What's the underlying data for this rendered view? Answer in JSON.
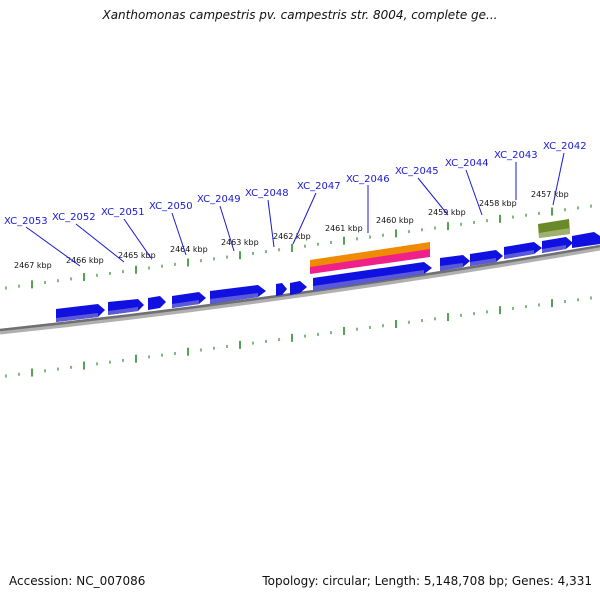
{
  "title": "Xanthomonas campestris pv. campestris str. 8004, complete ge...",
  "footer": {
    "accession": "Accession: NC_007086",
    "summary": "Topology: circular; Length: 5,148,708 bp; Genes: 4,331"
  },
  "colors": {
    "backbone": "#808080",
    "gene": "#1010e0",
    "gene_shadow": "#5a5ad8",
    "tick": "#2a8a2a",
    "orange_feature": "#f08a00",
    "pink_feature": "#f0208a",
    "olive_feature": "#6a8a2a",
    "label": "#1a1ad6"
  },
  "scale_labels": [
    "2467 kbp",
    "2466 kbp",
    "2465 kbp",
    "2464 kbp",
    "2463 kbp",
    "2462 kbp",
    "2461 kbp",
    "2460 kbp",
    "2459 kbp",
    "2458 kbp",
    "2457 kbp"
  ],
  "gene_labels": [
    "XC_2053",
    "XC_2052",
    "XC_2051",
    "XC_2050",
    "XC_2049",
    "XC_2048",
    "XC_2047",
    "XC_2046",
    "XC_2045",
    "XC_2044",
    "XC_2043",
    "XC_2042"
  ]
}
